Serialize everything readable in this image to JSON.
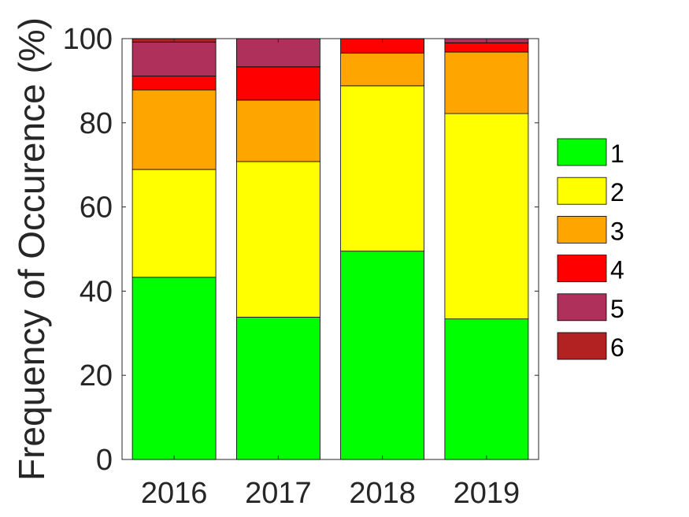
{
  "chart_data": {
    "type": "bar",
    "stacked": true,
    "title": "",
    "xlabel": "",
    "ylabel": "Frequency of Occurence (%)",
    "ylim": [
      0,
      100
    ],
    "yticks": [
      "0",
      "20",
      "40",
      "60",
      "80",
      "100"
    ],
    "categories": [
      "2016",
      "2017",
      "2018",
      "2019"
    ],
    "series": [
      {
        "name": "1",
        "color": "#00ff00",
        "values": [
          43.3,
          33.8,
          49.5,
          33.4
        ]
      },
      {
        "name": "2",
        "color": "#ffff00",
        "values": [
          25.6,
          37.0,
          39.3,
          48.8
        ]
      },
      {
        "name": "3",
        "color": "#ffa500",
        "values": [
          18.9,
          14.6,
          7.8,
          14.6
        ]
      },
      {
        "name": "4",
        "color": "#ff0000",
        "values": [
          3.3,
          7.9,
          3.4,
          2.2
        ]
      },
      {
        "name": "5",
        "color": "#b0305c",
        "values": [
          8.1,
          6.7,
          0.0,
          1.0
        ]
      },
      {
        "name": "6",
        "color": "#b22222",
        "values": [
          0.8,
          0.0,
          0.0,
          0.0
        ]
      }
    ],
    "legend_position": "right",
    "grid": false
  }
}
